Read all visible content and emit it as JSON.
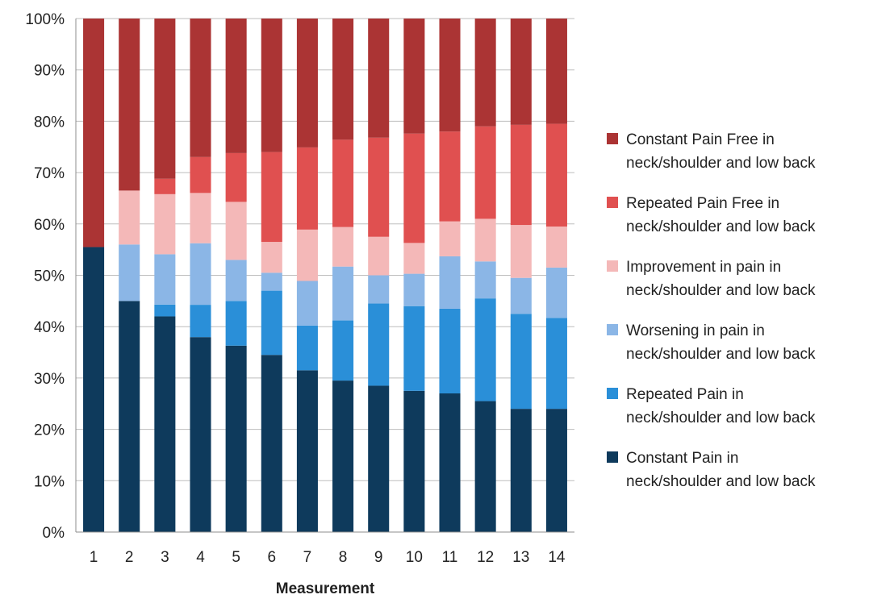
{
  "chart_data": {
    "type": "bar",
    "stacked": true,
    "percent": true,
    "title": "",
    "xlabel": "Measurement",
    "ylabel": "",
    "ylim": [
      0,
      100
    ],
    "yticks": [
      "0%",
      "10%",
      "20%",
      "30%",
      "40%",
      "50%",
      "60%",
      "70%",
      "80%",
      "90%",
      "100%"
    ],
    "categories": [
      "1",
      "2",
      "3",
      "4",
      "5",
      "6",
      "7",
      "8",
      "9",
      "10",
      "11",
      "12",
      "13",
      "14"
    ],
    "grid": "horizontal",
    "legend_position": "right",
    "series": [
      {
        "name": "Constant Pain in neck/shoulder and low back",
        "legend_lines": [
          "Constant Pain in",
          "neck/shoulder and low back"
        ],
        "color": "#0e3a5c",
        "values": [
          55.5,
          45,
          42,
          38,
          36.3,
          34.5,
          31.5,
          29.5,
          28.5,
          27.5,
          27,
          25.5,
          24,
          24
        ]
      },
      {
        "name": "Repeated Pain in neck/shoulder and low back",
        "legend_lines": [
          "Repeated Pain in",
          "neck/shoulder and low back"
        ],
        "color": "#2a8fd8",
        "values": [
          0,
          0,
          2.3,
          6.3,
          8.7,
          12.5,
          8.7,
          11.7,
          16,
          16.5,
          16.5,
          20,
          18.5,
          17.7
        ]
      },
      {
        "name": "Worsening in pain in neck/shoulder and low back",
        "legend_lines": [
          "Worsening in pain in",
          "neck/shoulder and low back"
        ],
        "color": "#8bb6e6",
        "values": [
          0,
          11,
          9.8,
          12,
          8,
          3.5,
          8.7,
          10.5,
          5.5,
          6.3,
          10.2,
          7.2,
          7,
          9.8
        ]
      },
      {
        "name": "Improvement in pain in neck/shoulder and low back",
        "legend_lines": [
          "Improvement in pain in",
          "neck/shoulder and low back"
        ],
        "color": "#f4b8b8",
        "values": [
          0,
          10.5,
          11.7,
          9.8,
          11.3,
          6,
          10,
          7.7,
          7.5,
          6,
          6.8,
          8.3,
          10.3,
          8
        ]
      },
      {
        "name": "Repeated Pain Free in neck/shoulder and low back",
        "legend_lines": [
          "Repeated Pain Free in",
          "neck/shoulder and low back"
        ],
        "color": "#e05050",
        "values": [
          0,
          0,
          3,
          7,
          9.5,
          17.5,
          16,
          17,
          19.3,
          21.3,
          17.5,
          18,
          19.5,
          20
        ]
      },
      {
        "name": "Constant Pain Free in neck/shoulder and low back",
        "legend_lines": [
          "Constant Pain Free in",
          "neck/shoulder and low back"
        ],
        "color": "#ab3434",
        "values": [
          44.5,
          33.5,
          31.2,
          27,
          26.2,
          26,
          25.1,
          23.6,
          23.2,
          22.4,
          22,
          21,
          20.7,
          20.5
        ]
      }
    ]
  }
}
